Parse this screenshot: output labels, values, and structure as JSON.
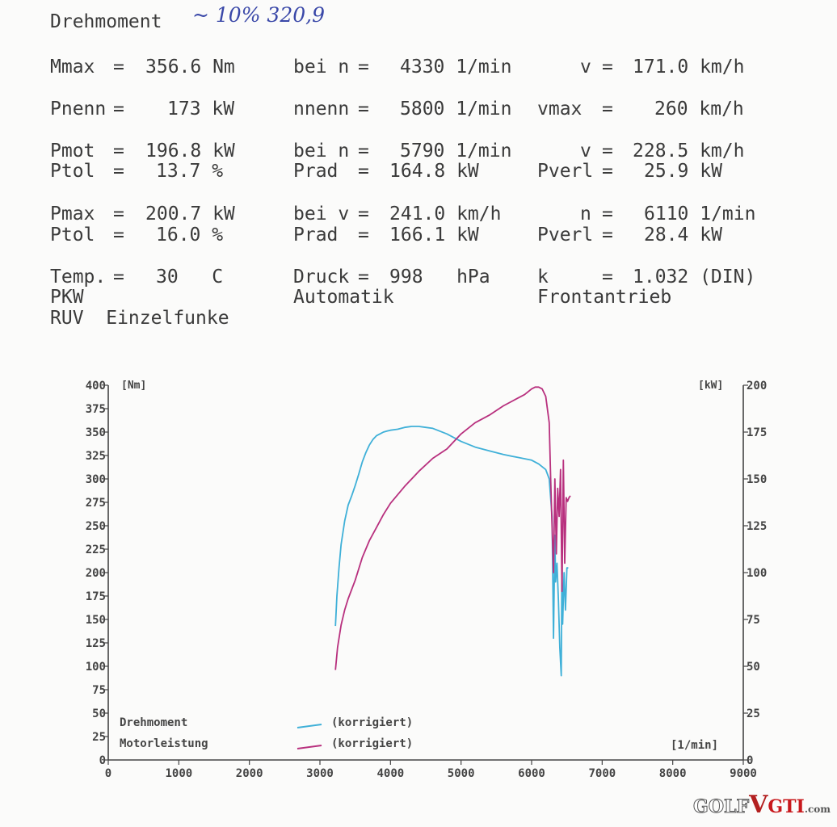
{
  "header": {
    "title": "Drehmoment",
    "handwritten_note": "~ 10%   320,9"
  },
  "specs": {
    "mmax_label": "Mmax",
    "eq": "=",
    "mmax_value": "356.6 Nm",
    "bei_n_label": "bei n",
    "bei_n_value": "4330 1/min",
    "v_label": "v",
    "v_value": "171.0 km/h",
    "pnenn_label": "Pnenn",
    "pnenn_value": "173 kW",
    "nnenn_label": "nnenn",
    "nnenn_value": "5800 1/min",
    "vmax_label": "vmax",
    "vmax_value": "260 km/h",
    "pmot_label": "Pmot",
    "pmot_value": "196.8 kW",
    "bei_n2_label": "bei n",
    "bei_n2_value": "5790 1/min",
    "v2_label": "v",
    "v2_value": "228.5 km/h",
    "ptol_label": "Ptol",
    "ptol_value": "13.7 %",
    "prad_label": "Prad",
    "prad_value": "164.8 kW",
    "pverl_label": "Pverl",
    "pverl_value": "25.9 kW",
    "pmax_label": "Pmax",
    "pmax_value": "200.7 kW",
    "bei_v_label": "bei v",
    "bei_v_value": "241.0 km/h",
    "n_label": "n",
    "n_value": "6110 1/min",
    "ptol2_label": "Ptol",
    "ptol2_value": "16.0 %",
    "prad2_label": "Prad",
    "prad2_value": "166.1 kW",
    "pverl2_label": "Pverl",
    "pverl2_value": "28.4 kW",
    "temp_label": "Temp.",
    "temp_value": "30   C",
    "druck_label": "Druck",
    "druck_value": "998   hPa",
    "k_label": "k",
    "k_value": "1.032 (DIN)",
    "pkw": "PKW",
    "automatik": "Automatik",
    "frontantrieb": "Frontantrieb",
    "ruv": "RUV  Einzelfunke"
  },
  "chart_data": {
    "type": "line",
    "left_unit": "[Nm]",
    "right_unit": "[kW]",
    "x_unit": "[1/min]",
    "xlim": [
      0,
      9000
    ],
    "ylim_left": [
      0,
      400
    ],
    "ylim_right": [
      0,
      200
    ],
    "x_ticks": [
      "0",
      "1000",
      "2000",
      "3000",
      "4000",
      "5000",
      "6000",
      "7000",
      "8000",
      "9000"
    ],
    "y_left_ticks": [
      "0",
      "25",
      "50",
      "75",
      "100",
      "125",
      "150",
      "175",
      "200",
      "225",
      "250",
      "275",
      "300",
      "325",
      "350",
      "375",
      "400"
    ],
    "y_right_ticks": [
      "0",
      "25",
      "50",
      "75",
      "100",
      "125",
      "150",
      "175",
      "200"
    ],
    "legend": [
      {
        "name": "Drehmoment",
        "note": "(korrigiert)",
        "color": "#3fb0d8"
      },
      {
        "name": "Motorleistung",
        "note": "(korrigiert)",
        "color": "#b8307e"
      }
    ],
    "series": [
      {
        "name": "Drehmoment",
        "axis": "left",
        "color": "#3fb0d8",
        "x": [
          3220,
          3240,
          3270,
          3300,
          3350,
          3400,
          3450,
          3500,
          3550,
          3600,
          3650,
          3700,
          3750,
          3800,
          3850,
          3900,
          3950,
          4000,
          4100,
          4200,
          4300,
          4400,
          4500,
          4600,
          4800,
          5000,
          5200,
          5400,
          5600,
          5800,
          6000,
          6100,
          6200,
          6250,
          6290,
          6310,
          6330,
          6340,
          6360,
          6380,
          6400,
          6420,
          6430,
          6440,
          6460,
          6480,
          6500,
          6520
        ],
        "y": [
          143,
          175,
          205,
          230,
          255,
          272,
          282,
          293,
          305,
          318,
          328,
          336,
          342,
          346,
          348,
          350,
          351,
          352,
          353,
          355,
          356,
          356,
          355,
          354,
          348,
          340,
          334,
          330,
          326,
          323,
          320,
          316,
          310,
          300,
          260,
          130,
          240,
          190,
          210,
          170,
          120,
          90,
          220,
          145,
          200,
          160,
          205,
          205
        ]
      },
      {
        "name": "Motorleistung",
        "axis": "right",
        "color": "#b8307e",
        "x": [
          3220,
          3250,
          3300,
          3350,
          3400,
          3500,
          3600,
          3700,
          3800,
          3900,
          4000,
          4200,
          4400,
          4600,
          4800,
          5000,
          5200,
          5400,
          5600,
          5800,
          5900,
          6000,
          6050,
          6100,
          6150,
          6200,
          6250,
          6270,
          6290,
          6310,
          6330,
          6350,
          6370,
          6390,
          6410,
          6430,
          6450,
          6470,
          6490,
          6510,
          6530,
          6550
        ],
        "y": [
          48,
          60,
          72,
          80,
          86,
          96,
          108,
          117,
          124,
          131,
          137,
          146,
          154,
          161,
          166,
          174,
          180,
          184,
          189,
          193,
          195,
          198,
          199,
          199,
          198,
          194,
          180,
          150,
          125,
          100,
          150,
          110,
          145,
          130,
          155,
          90,
          160,
          105,
          140,
          138,
          140,
          141
        ]
      }
    ]
  },
  "watermark": {
    "part1": "GOLF",
    "part2": "V",
    "part3": "GTI",
    "part4": ".com"
  }
}
